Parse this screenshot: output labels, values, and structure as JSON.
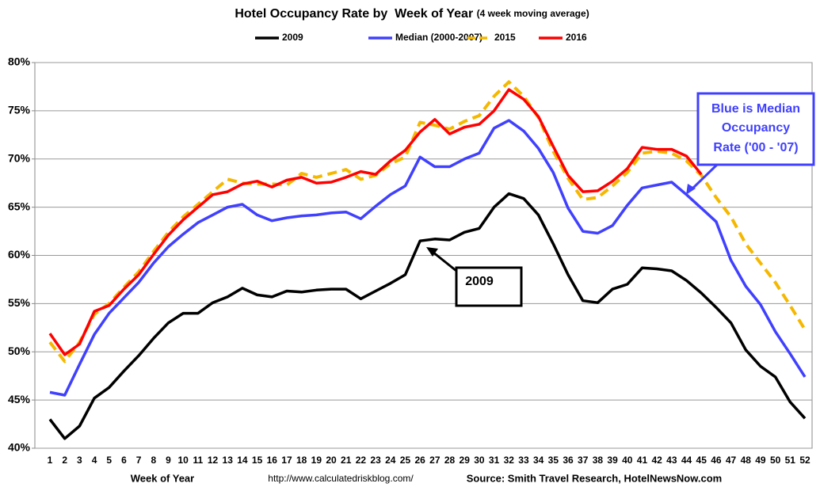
{
  "chart_data": {
    "type": "line",
    "title": "Hotel Occupancy Rate by  Week of Year",
    "subtitle": "(4 week moving average)",
    "x_label": "Week of Year",
    "footer_url": "http://www.calculatedriskblog.com/",
    "footer_source": "Source: Smith Travel Research, HotelNewsNow.com",
    "annotations": [
      {
        "lines": [
          "Blue is Median",
          "Occupancy",
          "Rate ('00 - '07)"
        ],
        "color": "#4040ff"
      },
      {
        "lines": [
          "2009"
        ],
        "color": "#000000"
      }
    ],
    "categories": [
      "1",
      "2",
      "3",
      "4",
      "5",
      "6",
      "7",
      "8",
      "9",
      "10",
      "11",
      "12",
      "13",
      "14",
      "15",
      "16",
      "17",
      "18",
      "19",
      "20",
      "21",
      "22",
      "23",
      "24",
      "25",
      "26",
      "27",
      "28",
      "29",
      "30",
      "31",
      "32",
      "33",
      "34",
      "35",
      "36",
      "37",
      "38",
      "39",
      "40",
      "41",
      "42",
      "43",
      "44",
      "45",
      "46",
      "47",
      "48",
      "49",
      "50",
      "51",
      "52"
    ],
    "ylim": [
      40,
      80
    ],
    "yticks": [
      {
        "value": 40,
        "label": "40%"
      },
      {
        "value": 45,
        "label": "45%"
      },
      {
        "value": 50,
        "label": "50%"
      },
      {
        "value": 55,
        "label": "55%"
      },
      {
        "value": 60,
        "label": "60%"
      },
      {
        "value": 65,
        "label": "65%"
      },
      {
        "value": 70,
        "label": "70%"
      },
      {
        "value": 75,
        "label": "75%"
      },
      {
        "value": 80,
        "label": "80%"
      }
    ],
    "grid": true,
    "legend": "top",
    "series": [
      {
        "name": "2009",
        "color": "#000000",
        "dashed": false,
        "values": [
          43,
          41,
          42.3,
          45.2,
          46.3,
          48,
          49.6,
          51.4,
          53,
          54,
          54,
          55.1,
          55.7,
          56.6,
          55.9,
          55.7,
          56.3,
          56.2,
          56.4,
          56.5,
          56.5,
          55.5,
          56.3,
          57.1,
          58,
          61.5,
          61.7,
          61.6,
          62.4,
          62.8,
          65,
          66.4,
          65.9,
          64.2,
          61.2,
          58,
          55.3,
          55.1,
          56.5,
          57,
          58.7,
          58.6,
          58.4,
          57.4,
          56.1,
          54.6,
          53,
          50.2,
          48.5,
          47.4,
          44.8,
          43.1
        ]
      },
      {
        "name": "Median (2000-2007)",
        "color": "#4040ff",
        "dashed": false,
        "values": [
          45.8,
          45.5,
          48.7,
          51.8,
          54,
          55.6,
          57.2,
          59.2,
          60.9,
          62.2,
          63.4,
          64.2,
          65,
          65.3,
          64.2,
          63.6,
          63.9,
          64.1,
          64.2,
          64.4,
          64.5,
          63.8,
          65.1,
          66.3,
          67.2,
          70.2,
          69.2,
          69.2,
          70,
          70.6,
          73.2,
          74,
          72.9,
          71.1,
          68.6,
          64.9,
          62.5,
          62.3,
          63.1,
          65.2,
          67,
          67.3,
          67.6,
          66.3,
          64.9,
          63.5,
          59.5,
          56.8,
          54.9,
          52.1,
          49.8,
          47.4
        ]
      },
      {
        "name": "2015",
        "color": "#f5b800",
        "dashed": true,
        "values": [
          51,
          49,
          51,
          53.9,
          55,
          56.7,
          58.3,
          60.4,
          62.4,
          64,
          65.3,
          66.6,
          67.9,
          67.5,
          67.4,
          67.4,
          67.3,
          68.5,
          68.1,
          68.5,
          68.9,
          67.9,
          68.3,
          69.5,
          70.2,
          73.8,
          73.5,
          73.1,
          73.9,
          74.5,
          76.5,
          78,
          76.5,
          74.3,
          70.8,
          68,
          65.8,
          66,
          67.2,
          68.6,
          70.6,
          70.8,
          70.6,
          69.8,
          68.3,
          66,
          64,
          61.2,
          59.2,
          57.2,
          54.8,
          52.3
        ]
      },
      {
        "name": "2016",
        "color": "#ff0000",
        "dashed": false,
        "values": [
          51.9,
          49.7,
          50.8,
          54.2,
          54.8,
          56.5,
          58,
          60.1,
          62.1,
          63.7,
          65,
          66.3,
          66.6,
          67.4,
          67.7,
          67.1,
          67.8,
          68.1,
          67.5,
          67.6,
          68.1,
          68.7,
          68.4,
          69.8,
          70.9,
          72.8,
          74.1,
          72.6,
          73.3,
          73.6,
          75,
          77.2,
          76.2,
          74.4,
          71.3,
          68.3,
          66.6,
          66.7,
          67.7,
          69,
          71.2,
          71,
          71,
          70.3,
          68.4,
          null,
          null,
          null,
          null,
          null,
          null,
          null
        ]
      }
    ]
  }
}
